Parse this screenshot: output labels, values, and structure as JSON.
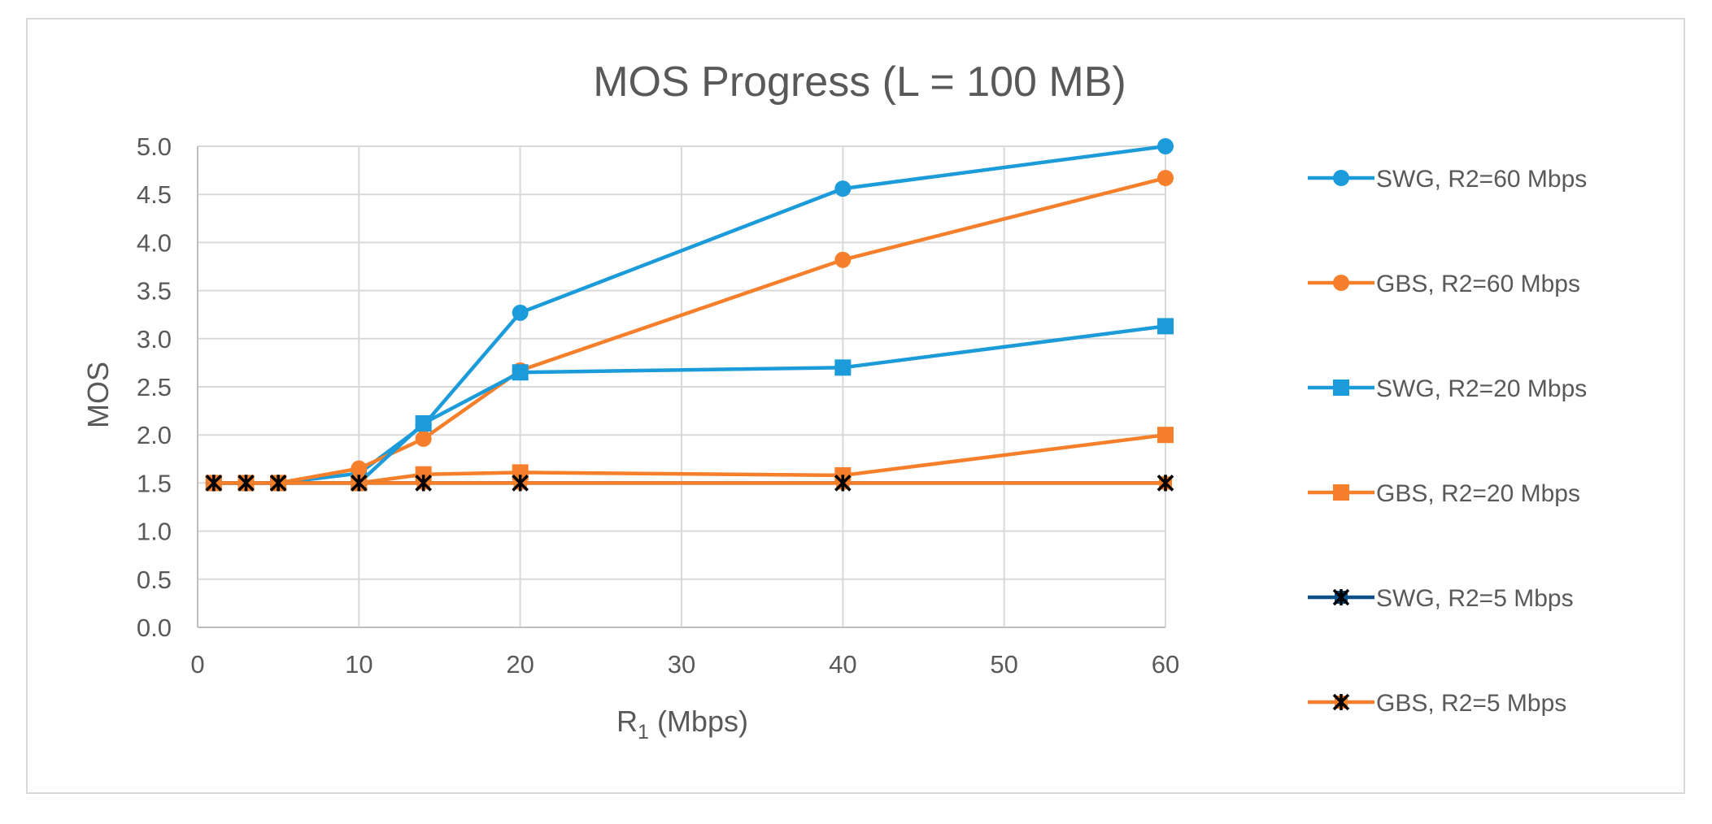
{
  "chart_data": {
    "type": "line",
    "title": "MOS Progress (L = 100 MB)",
    "xlabel": "R",
    "xlabel_sub": "1",
    "xlabel_unit": " (Mbps)",
    "ylabel": "MOS",
    "xlim": [
      0,
      60
    ],
    "ylim": [
      0,
      5
    ],
    "xticks": [
      0,
      10,
      20,
      30,
      40,
      50,
      60
    ],
    "yticks": [
      0.0,
      0.5,
      1.0,
      1.5,
      2.0,
      2.5,
      3.0,
      3.5,
      4.0,
      4.5,
      5.0
    ],
    "xtick_labels": [
      "0",
      "10",
      "20",
      "30",
      "40",
      "50",
      "60"
    ],
    "ytick_labels": [
      "0.0",
      "0.5",
      "1.0",
      "1.5",
      "2.0",
      "2.5",
      "3.0",
      "3.5",
      "4.0",
      "4.5",
      "5.0"
    ],
    "grid": true,
    "legend_position": "right",
    "series": [
      {
        "name": "SWG, R2=60 Mbps",
        "color": "#1b9bd9",
        "marker": "circle",
        "x": [
          1,
          3,
          5,
          10,
          14,
          20,
          40,
          60
        ],
        "values": [
          1.5,
          1.5,
          1.5,
          1.6,
          2.1,
          3.27,
          4.56,
          5.0
        ]
      },
      {
        "name": "GBS, R2=60 Mbps",
        "color": "#f57f2a",
        "marker": "circle",
        "x": [
          1,
          3,
          5,
          10,
          14,
          20,
          40,
          60
        ],
        "values": [
          1.5,
          1.5,
          1.5,
          1.65,
          1.96,
          2.67,
          3.82,
          4.67
        ]
      },
      {
        "name": "SWG, R2=20 Mbps",
        "color": "#1b9bd9",
        "marker": "square",
        "x": [
          1,
          3,
          5,
          10,
          14,
          20,
          40,
          60
        ],
        "values": [
          1.5,
          1.5,
          1.5,
          1.5,
          2.12,
          2.65,
          2.7,
          3.13
        ]
      },
      {
        "name": "GBS, R2=20 Mbps",
        "color": "#f57f2a",
        "marker": "square",
        "x": [
          1,
          3,
          5,
          10,
          14,
          20,
          40,
          60
        ],
        "values": [
          1.5,
          1.5,
          1.5,
          1.5,
          1.59,
          1.61,
          1.58,
          2.0
        ]
      },
      {
        "name": "SWG, R2=5 Mbps",
        "color": "#0b4f88",
        "marker": "x",
        "x": [
          1,
          3,
          5,
          10,
          14,
          20,
          40,
          60
        ],
        "values": [
          1.5,
          1.5,
          1.5,
          1.5,
          1.5,
          1.5,
          1.5,
          1.5
        ]
      },
      {
        "name": "GBS, R2=5 Mbps",
        "color": "#f57f2a",
        "marker": "x",
        "x": [
          1,
          3,
          5,
          10,
          14,
          20,
          40,
          60
        ],
        "values": [
          1.5,
          1.5,
          1.5,
          1.5,
          1.5,
          1.5,
          1.5,
          1.5
        ]
      }
    ]
  }
}
